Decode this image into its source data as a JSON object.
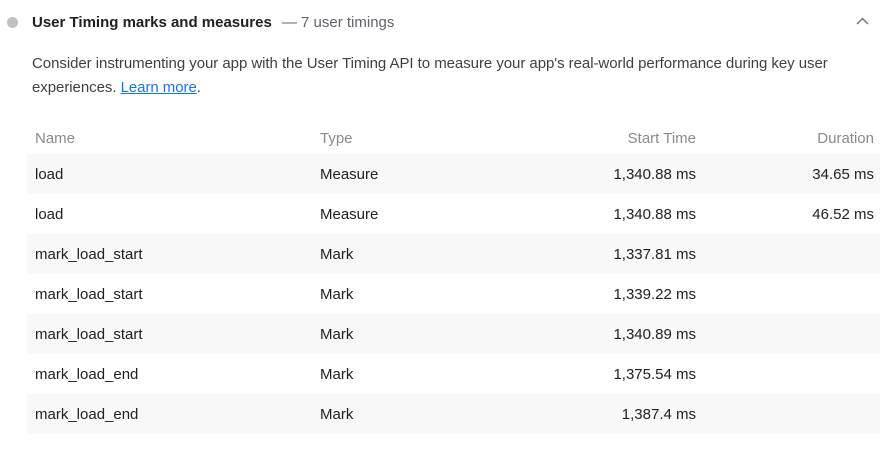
{
  "header": {
    "icon": "score-dot-icon",
    "title": "User Timing marks and measures",
    "summary": "— 7 user timings",
    "collapse_icon": "chevron-up-icon"
  },
  "description": {
    "text_before": "Consider instrumenting your app with the User Timing API to measure your app's real-world performance during key user experiences. ",
    "link_text": "Learn more",
    "text_after": "."
  },
  "table": {
    "columns": [
      "Name",
      "Type",
      "Start Time",
      "Duration"
    ],
    "rows": [
      {
        "name": "load",
        "type": "Measure",
        "start_time": "1,340.88 ms",
        "duration": "34.65 ms"
      },
      {
        "name": "load",
        "type": "Measure",
        "start_time": "1,340.88 ms",
        "duration": "46.52 ms"
      },
      {
        "name": "mark_load_start",
        "type": "Mark",
        "start_time": "1,337.81 ms",
        "duration": ""
      },
      {
        "name": "mark_load_start",
        "type": "Mark",
        "start_time": "1,339.22 ms",
        "duration": ""
      },
      {
        "name": "mark_load_start",
        "type": "Mark",
        "start_time": "1,340.89 ms",
        "duration": ""
      },
      {
        "name": "mark_load_end",
        "type": "Mark",
        "start_time": "1,375.54 ms",
        "duration": ""
      },
      {
        "name": "mark_load_end",
        "type": "Mark",
        "start_time": "1,387.4 ms",
        "duration": ""
      }
    ]
  },
  "colors": {
    "link_blue": "#1a73e8",
    "row_stripe": "#f8f8f8",
    "title_text": "#212121",
    "muted_text": "#5f6368",
    "table_header_text": "#8a8a8a",
    "score_dot_gray": "#c1c1c1"
  }
}
